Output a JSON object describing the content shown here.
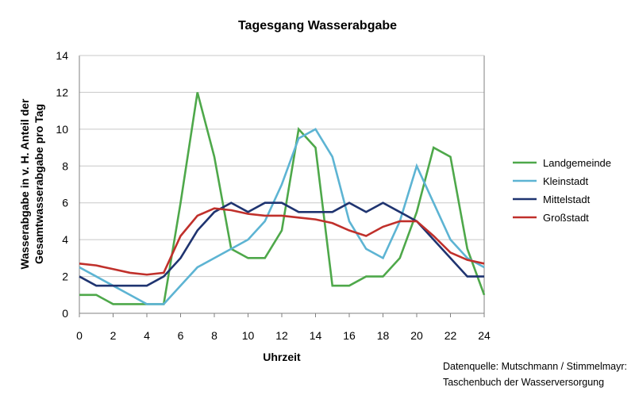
{
  "chart_data": {
    "type": "line",
    "title": "Tagesgang Wasserabgabe",
    "xlabel": "Uhrzeit",
    "ylabel_line1": "Wasserabgabe in v. H. Anteil der",
    "ylabel_line2": "Gesamtwasserabgabe pro Tag",
    "x": [
      0,
      1,
      2,
      3,
      4,
      5,
      6,
      7,
      8,
      9,
      10,
      11,
      12,
      13,
      14,
      15,
      16,
      17,
      18,
      19,
      20,
      21,
      22,
      23,
      24
    ],
    "xlim": [
      0,
      24
    ],
    "ylim": [
      0,
      14
    ],
    "x_ticks": [
      "0",
      "2",
      "4",
      "6",
      "8",
      "10",
      "12",
      "14",
      "16",
      "18",
      "20",
      "22",
      "24"
    ],
    "y_ticks": [
      "0",
      "2",
      "4",
      "6",
      "8",
      "10",
      "12",
      "14"
    ],
    "grid": "horizontal",
    "legend_position": "right",
    "series": [
      {
        "name": "Landgemeinde",
        "color": "#4ea84a",
        "values": [
          1,
          1,
          0.5,
          0.5,
          0.5,
          0.5,
          6,
          12,
          8.5,
          3.5,
          3,
          3,
          4.5,
          10,
          9,
          1.5,
          1.5,
          2,
          2,
          3,
          5.5,
          9,
          8.5,
          3.5,
          1
        ]
      },
      {
        "name": "Kleinstadt",
        "color": "#5db4d3",
        "values": [
          2.5,
          2,
          1.5,
          1,
          0.5,
          0.5,
          1.5,
          2.5,
          3,
          3.5,
          4,
          5,
          7,
          9.5,
          10,
          8.5,
          5,
          3.5,
          3,
          5,
          8,
          6,
          4,
          3,
          2.5
        ]
      },
      {
        "name": "Mittelstadt",
        "color": "#1f3470",
        "values": [
          2,
          1.5,
          1.5,
          1.5,
          1.5,
          2,
          3,
          4.5,
          5.5,
          6,
          5.5,
          6,
          6,
          5.5,
          5.5,
          5.5,
          6,
          5.5,
          6,
          5.5,
          5,
          4,
          3,
          2,
          2
        ]
      },
      {
        "name": "Großstadt",
        "color": "#c0302b",
        "values": [
          2.7,
          2.6,
          2.4,
          2.2,
          2.1,
          2.2,
          4.2,
          5.3,
          5.7,
          5.6,
          5.4,
          5.3,
          5.3,
          5.2,
          5.1,
          4.9,
          4.5,
          4.2,
          4.7,
          5,
          5,
          4.2,
          3.3,
          2.9,
          2.7
        ]
      }
    ]
  },
  "source": {
    "line1": "Datenquelle: Mutschmann / Stimmelmayr:",
    "line2": "Taschenbuch der Wasserversorgung"
  }
}
